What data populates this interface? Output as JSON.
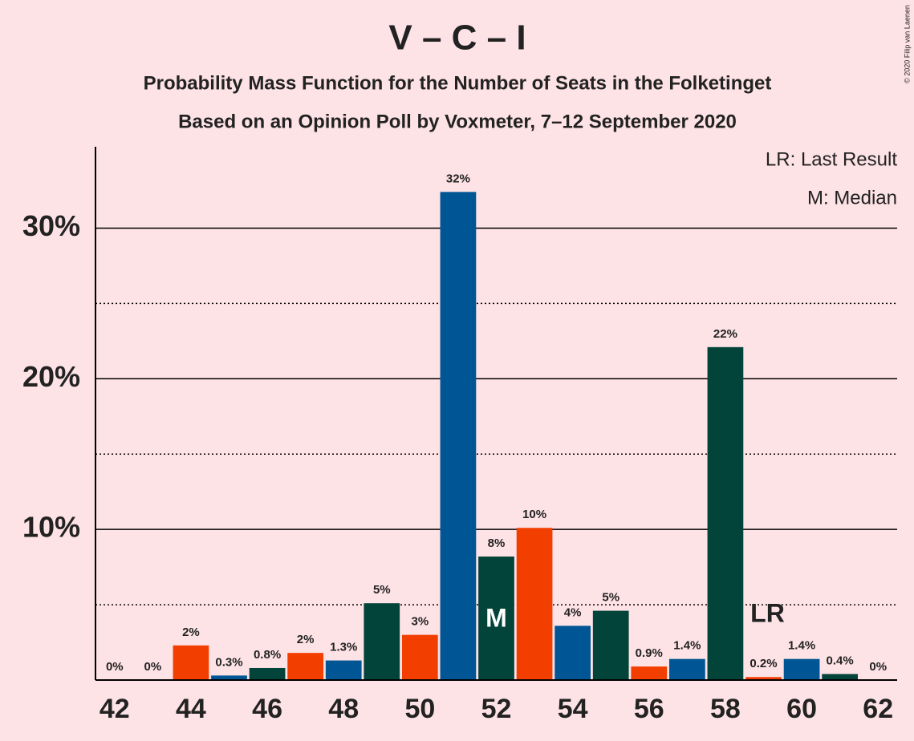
{
  "chart_data": {
    "type": "bar",
    "title": "V – C – I",
    "subtitle": "Probability Mass Function for the Number of Seats in the Folketinget",
    "subtitle2": "Based on an Opinion Poll by Voxmeter, 7–12 September 2020",
    "copyright": "© 2020 Filip van Laenen",
    "legend": [
      "LR: Last Result",
      "M: Median"
    ],
    "x": [
      42,
      43,
      44,
      45,
      46,
      47,
      48,
      49,
      50,
      51,
      52,
      53,
      54,
      55,
      56,
      57,
      58,
      59,
      60,
      61,
      62
    ],
    "values": [
      0,
      0,
      2.3,
      0.3,
      0.8,
      1.8,
      1.3,
      5.1,
      3.0,
      32.4,
      8.2,
      10.1,
      3.6,
      4.6,
      0.9,
      1.4,
      22.1,
      0.2,
      1.4,
      0.4,
      0
    ],
    "value_labels": [
      "0%",
      "0%",
      "2%",
      "0.3%",
      "0.8%",
      "2%",
      "1.3%",
      "5%",
      "3%",
      "32%",
      "8%",
      "10%",
      "4%",
      "5%",
      "0.9%",
      "1.4%",
      "22%",
      "0.2%",
      "1.4%",
      "0.4%",
      "0%"
    ],
    "colors": [
      "#005594",
      "#03443a",
      "#f23f00",
      "#005594",
      "#03443a",
      "#f23f00",
      "#005594",
      "#03443a",
      "#f23f00",
      "#005594",
      "#03443a",
      "#f23f00",
      "#005594",
      "#03443a",
      "#f23f00",
      "#005594",
      "#03443a",
      "#f23f00",
      "#005594",
      "#03443a",
      "#f23f00"
    ],
    "annotations": [
      {
        "x": 52,
        "text": "M"
      },
      {
        "x": 59,
        "text": "LR"
      }
    ],
    "xlim": [
      41.5,
      62.5
    ],
    "xticks": [
      42,
      44,
      46,
      48,
      50,
      52,
      54,
      56,
      58,
      60,
      62
    ],
    "ylim": [
      0,
      35.4
    ],
    "yticks": [
      {
        "value": 10,
        "label": "10%"
      },
      {
        "value": 20,
        "label": "20%"
      },
      {
        "value": 30,
        "label": "30%"
      }
    ],
    "minor_grid": [
      5,
      15,
      25
    ],
    "grid": true
  }
}
